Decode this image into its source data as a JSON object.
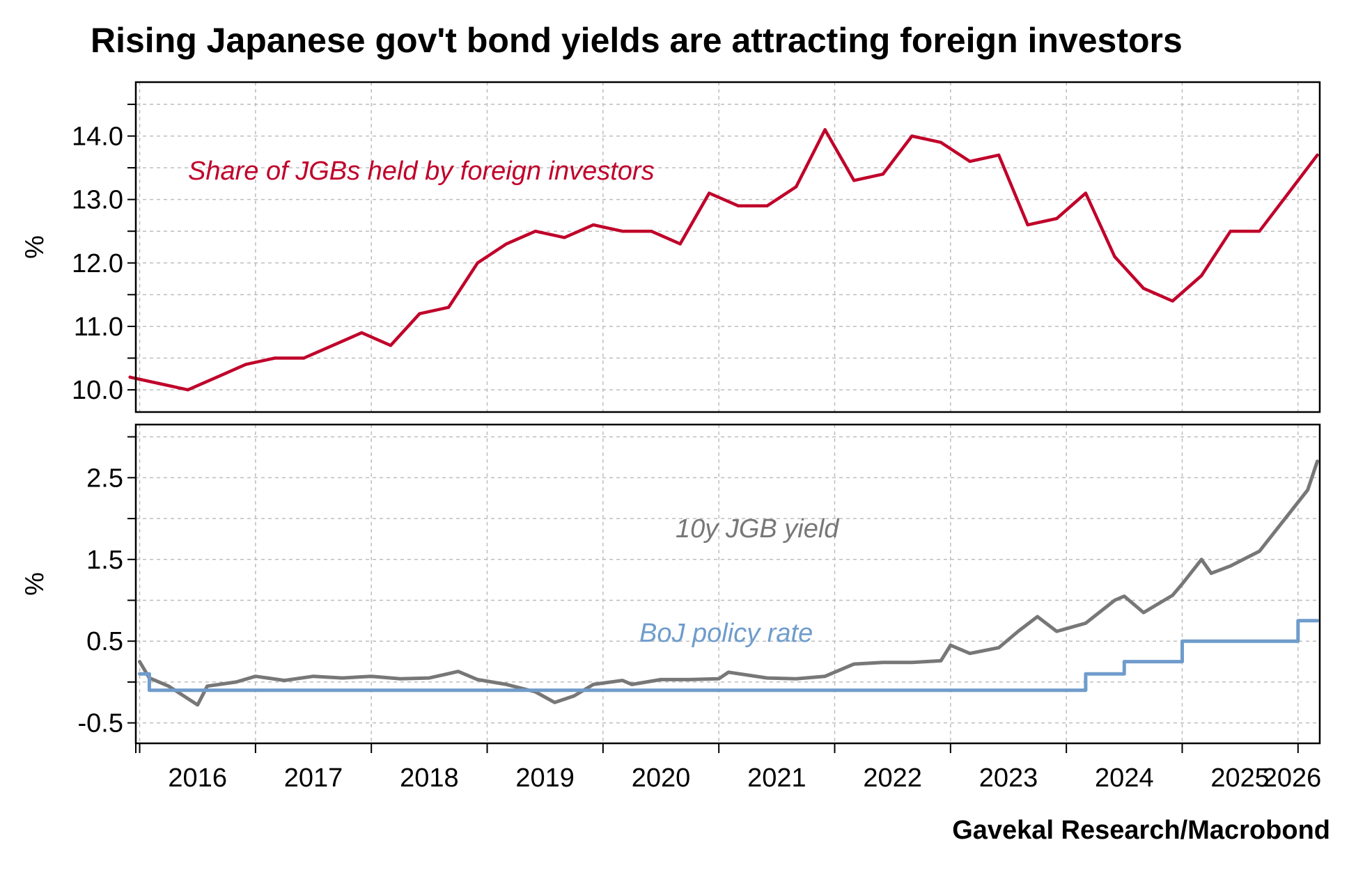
{
  "chart_data": {
    "title": "Rising Japanese gov't bond yields are attracting foreign investors",
    "source": "Gavekal Research/Macrobond",
    "colors": {
      "foreign_share": "#c0002a",
      "jgb_yield": "#777777",
      "boj_rate": "#6f9ccb"
    },
    "x_ticks": [
      "2016",
      "2017",
      "2018",
      "2019",
      "2020",
      "2021",
      "2022",
      "2023",
      "2024",
      "2025",
      "2026"
    ],
    "panels": [
      {
        "id": "top",
        "type": "line",
        "ylabel": "%",
        "ylim": [
          9.65,
          14.85
        ],
        "y_ticks": [
          "10.0",
          "11.0",
          "12.0",
          "13.0",
          "14.0"
        ],
        "grid": true,
        "series": [
          {
            "name": "Share of JGBs held by foreign investors",
            "x": [
              "2015-12",
              "2016-03",
              "2016-06",
              "2016-09",
              "2016-12",
              "2017-03",
              "2017-06",
              "2017-09",
              "2017-12",
              "2018-03",
              "2018-06",
              "2018-09",
              "2018-12",
              "2019-03",
              "2019-06",
              "2019-09",
              "2019-12",
              "2020-03",
              "2020-06",
              "2020-09",
              "2020-12",
              "2021-03",
              "2021-06",
              "2021-09",
              "2021-12",
              "2022-03",
              "2022-06",
              "2022-09",
              "2022-12",
              "2023-03",
              "2023-06",
              "2023-09",
              "2023-12",
              "2024-03",
              "2024-06",
              "2024-09",
              "2024-12",
              "2025-03",
              "2025-06",
              "2025-09",
              "2025-12",
              "2026-03"
            ],
            "values": [
              10.2,
              10.1,
              10.0,
              10.2,
              10.4,
              10.5,
              10.5,
              10.7,
              10.9,
              10.7,
              11.2,
              11.3,
              12.0,
              12.3,
              12.5,
              12.4,
              12.6,
              12.5,
              12.5,
              12.3,
              13.1,
              12.9,
              12.9,
              13.2,
              14.1,
              13.3,
              13.4,
              14.0,
              13.9,
              13.6,
              13.7,
              12.6,
              12.7,
              13.1,
              12.1,
              11.6,
              11.4,
              11.8,
              12.5,
              12.5,
              13.1,
              13.7
            ]
          }
        ]
      },
      {
        "id": "bottom",
        "type": "line",
        "ylabel": "%",
        "ylim": [
          -0.75,
          3.15
        ],
        "y_ticks": [
          "-0.5",
          "0.5",
          "1.5",
          "2.5"
        ],
        "grid": true,
        "series": [
          {
            "name": "10y JGB yield",
            "x": [
              "2016-01",
              "2016-02",
              "2016-04",
              "2016-07",
              "2016-08",
              "2016-11",
              "2017-01",
              "2017-04",
              "2017-07",
              "2017-10",
              "2018-01",
              "2018-04",
              "2018-07",
              "2018-10",
              "2018-12",
              "2019-03",
              "2019-06",
              "2019-08",
              "2019-10",
              "2019-12",
              "2020-03",
              "2020-04",
              "2020-07",
              "2020-10",
              "2021-01",
              "2021-02",
              "2021-06",
              "2021-09",
              "2021-12",
              "2022-03",
              "2022-06",
              "2022-09",
              "2022-12",
              "2023-01",
              "2023-03",
              "2023-06",
              "2023-08",
              "2023-10",
              "2023-12",
              "2024-03",
              "2024-06",
              "2024-07",
              "2024-09",
              "2024-12",
              "2025-01",
              "2025-03",
              "2025-04",
              "2025-06",
              "2025-09",
              "2025-12",
              "2026-02",
              "2026-03"
            ],
            "values": [
              0.25,
              0.05,
              -0.05,
              -0.28,
              -0.05,
              0.0,
              0.07,
              0.02,
              0.07,
              0.05,
              0.07,
              0.04,
              0.05,
              0.13,
              0.03,
              -0.03,
              -0.12,
              -0.25,
              -0.17,
              -0.03,
              0.02,
              -0.03,
              0.03,
              0.03,
              0.04,
              0.12,
              0.05,
              0.04,
              0.07,
              0.22,
              0.24,
              0.24,
              0.26,
              0.45,
              0.35,
              0.42,
              0.62,
              0.8,
              0.62,
              0.72,
              1.0,
              1.05,
              0.85,
              1.06,
              1.2,
              1.5,
              1.33,
              1.42,
              1.6,
              2.05,
              2.35,
              2.7
            ]
          },
          {
            "name": "BoJ policy rate",
            "x": [
              "2016-01",
              "2016-02",
              "2024-03",
              "2024-07",
              "2025-01",
              "2026-01"
            ],
            "values": [
              0.1,
              -0.1,
              0.1,
              0.25,
              0.5,
              0.75
            ]
          }
        ]
      }
    ]
  }
}
